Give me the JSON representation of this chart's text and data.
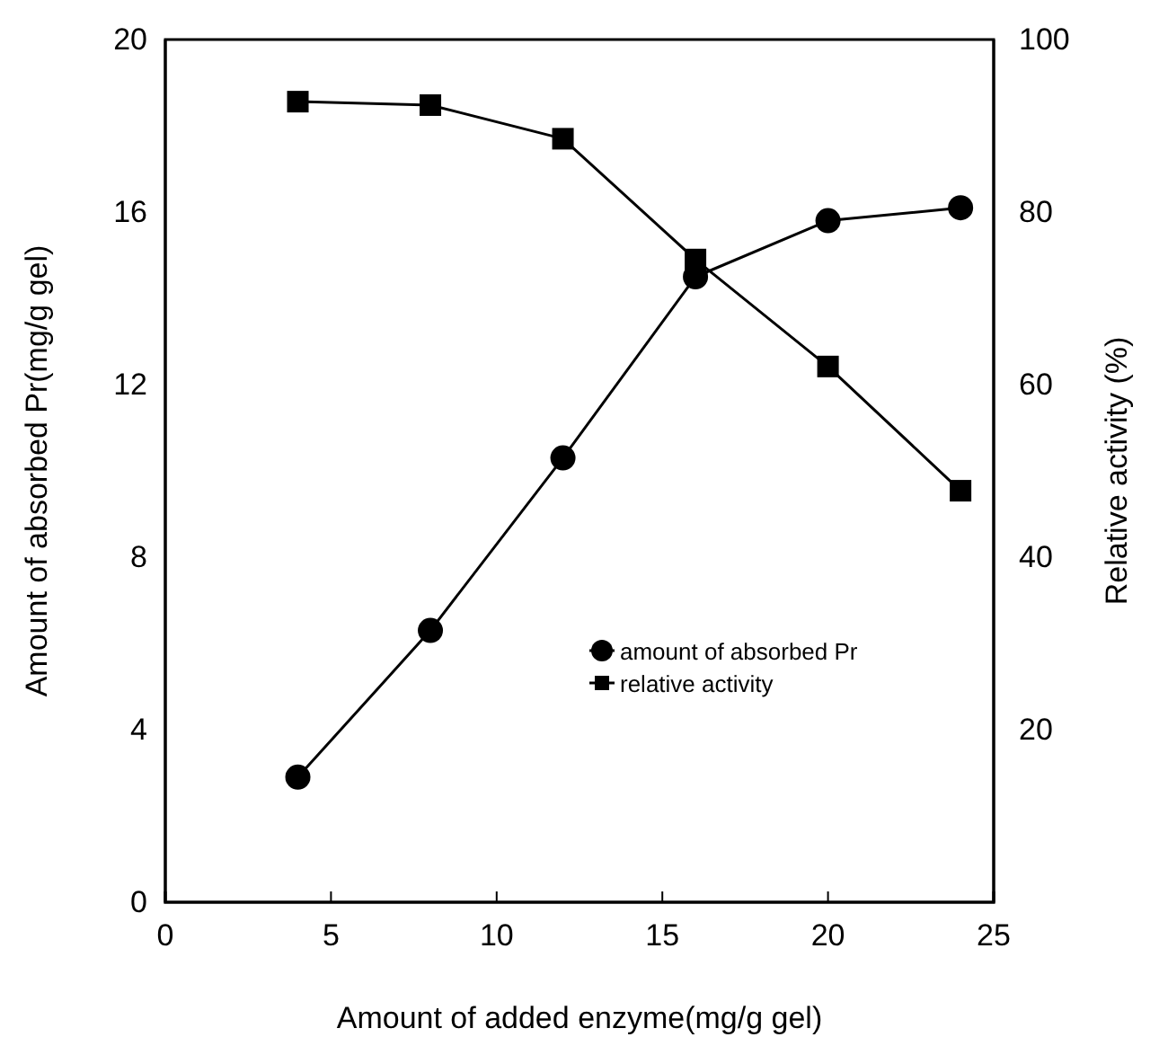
{
  "chart_data": {
    "type": "line",
    "xlabel": "Amount of added enzyme(mg/g gel)",
    "ylabel": "Amount of absorbed Pr(mg/g gel)",
    "y2label": "Relative activity (%)",
    "x": [
      4,
      8,
      12,
      16,
      20,
      24
    ],
    "xlim": [
      0,
      25
    ],
    "xticks": [
      0,
      5,
      10,
      15,
      20,
      25
    ],
    "ylim": [
      0,
      20
    ],
    "yticks": [
      0,
      4,
      8,
      12,
      16,
      20
    ],
    "y2lim": [
      0,
      100
    ],
    "y2ticks": [
      20,
      40,
      60,
      80,
      100
    ],
    "grid": false,
    "legend": "bottom right",
    "line_style": "solid",
    "series": [
      {
        "name": "amount of absorbed Pr",
        "color": "#000000",
        "marker": "circle",
        "values": [
          2.9,
          6.3,
          10.3,
          14.5,
          15.8,
          16.1
        ]
      },
      {
        "name": "relative activity",
        "color": "#000000",
        "marker": "square",
        "axis": "y2",
        "values": [
          92.8,
          92.4,
          88.5,
          74.5,
          62.1,
          47.7
        ]
      }
    ]
  }
}
